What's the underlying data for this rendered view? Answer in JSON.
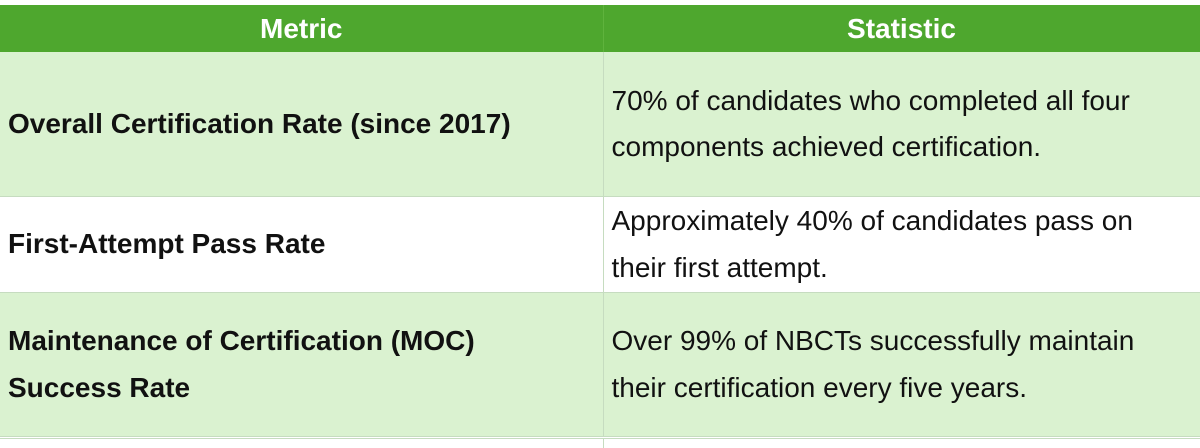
{
  "table": {
    "header": [
      "Metric",
      "Statistic"
    ],
    "rows": [
      [
        "Overall Certification Rate (since 2017)",
        "70% of candidates who completed all four components achieved certification."
      ],
      [
        "First-Attempt Pass Rate",
        "Approximately 40% of candidates pass on their first attempt."
      ],
      [
        "Maintenance of Certification (MOC) Success Rate",
        "Over 99% of NBCTs successfully maintain their certification every five years."
      ]
    ]
  }
}
